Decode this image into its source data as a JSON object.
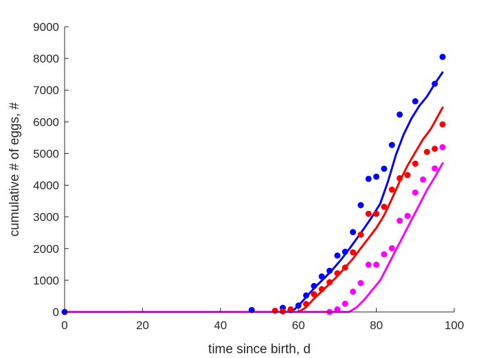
{
  "chart_data": {
    "type": "scatter",
    "title": "",
    "xlabel": "time since birth, d",
    "ylabel": "cumulative # of eggs, #",
    "xlim": [
      0,
      100
    ],
    "ylim": [
      0,
      9000
    ],
    "xticks": [
      0,
      20,
      40,
      60,
      80,
      100
    ],
    "yticks": [
      0,
      1000,
      2000,
      3000,
      4000,
      5000,
      6000,
      7000,
      8000,
      9000
    ],
    "grid": false,
    "series": [
      {
        "color": "#0000ff",
        "points": [
          [
            0,
            0
          ],
          [
            48,
            60
          ],
          [
            56,
            130
          ],
          [
            58,
            60
          ],
          [
            60,
            200
          ],
          [
            62,
            520
          ],
          [
            64,
            820
          ],
          [
            66,
            1120
          ],
          [
            68,
            1300
          ],
          [
            70,
            1780
          ],
          [
            72,
            1900
          ],
          [
            74,
            2520
          ],
          [
            76,
            3370
          ],
          [
            78,
            4200
          ],
          [
            80,
            4270
          ],
          [
            82,
            4520
          ],
          [
            84,
            5270
          ],
          [
            86,
            6230
          ],
          [
            90,
            6650
          ],
          [
            95,
            7200
          ],
          [
            97,
            8050
          ]
        ],
        "line": [
          [
            0,
            0
          ],
          [
            57,
            0
          ],
          [
            59,
            80
          ],
          [
            61,
            330
          ],
          [
            63,
            610
          ],
          [
            65,
            870
          ],
          [
            67,
            1110
          ],
          [
            69,
            1370
          ],
          [
            71,
            1660
          ],
          [
            73,
            1980
          ],
          [
            75,
            2320
          ],
          [
            77,
            2660
          ],
          [
            79,
            3020
          ],
          [
            81,
            3420
          ],
          [
            83,
            4120
          ],
          [
            85,
            4950
          ],
          [
            87,
            5600
          ],
          [
            89,
            6100
          ],
          [
            91,
            6500
          ],
          [
            93,
            6800
          ],
          [
            95,
            7200
          ],
          [
            97,
            7560
          ]
        ]
      },
      {
        "color": "#ff0000",
        "points": [
          [
            54,
            40
          ],
          [
            56,
            20
          ],
          [
            58,
            80
          ],
          [
            62,
            250
          ],
          [
            64,
            560
          ],
          [
            66,
            720
          ],
          [
            68,
            940
          ],
          [
            70,
            1220
          ],
          [
            72,
            1400
          ],
          [
            74,
            1880
          ],
          [
            76,
            2440
          ],
          [
            78,
            3100
          ],
          [
            80,
            3100
          ],
          [
            82,
            3320
          ],
          [
            84,
            3860
          ],
          [
            86,
            4220
          ],
          [
            88,
            4320
          ],
          [
            90,
            4680
          ],
          [
            93,
            5050
          ],
          [
            95,
            5150
          ],
          [
            97,
            5920
          ]
        ],
        "line": [
          [
            0,
            0
          ],
          [
            60,
            0
          ],
          [
            62,
            150
          ],
          [
            64,
            420
          ],
          [
            66,
            650
          ],
          [
            68,
            890
          ],
          [
            70,
            1130
          ],
          [
            72,
            1400
          ],
          [
            74,
            1680
          ],
          [
            76,
            2010
          ],
          [
            78,
            2330
          ],
          [
            80,
            2650
          ],
          [
            82,
            3050
          ],
          [
            84,
            3570
          ],
          [
            86,
            4120
          ],
          [
            88,
            4620
          ],
          [
            90,
            5040
          ],
          [
            92,
            5450
          ],
          [
            94,
            5780
          ],
          [
            97,
            6450
          ]
        ]
      },
      {
        "color": "#ff00ff",
        "points": [
          [
            68,
            0
          ],
          [
            70,
            80
          ],
          [
            72,
            260
          ],
          [
            74,
            640
          ],
          [
            76,
            910
          ],
          [
            78,
            1490
          ],
          [
            80,
            1490
          ],
          [
            82,
            1820
          ],
          [
            84,
            2010
          ],
          [
            86,
            2880
          ],
          [
            88,
            3030
          ],
          [
            90,
            3770
          ],
          [
            92,
            4180
          ],
          [
            95,
            4530
          ],
          [
            97,
            5200
          ]
        ],
        "line": [
          [
            0,
            0
          ],
          [
            73,
            0
          ],
          [
            75,
            150
          ],
          [
            77,
            400
          ],
          [
            79,
            700
          ],
          [
            81,
            1000
          ],
          [
            83,
            1470
          ],
          [
            85,
            1950
          ],
          [
            87,
            2420
          ],
          [
            89,
            2900
          ],
          [
            91,
            3370
          ],
          [
            93,
            3850
          ],
          [
            95,
            4250
          ],
          [
            97,
            4690
          ]
        ]
      }
    ]
  }
}
